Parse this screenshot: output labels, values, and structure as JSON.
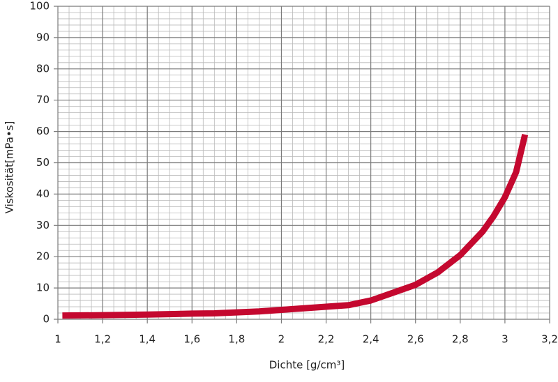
{
  "chart_data": {
    "type": "line",
    "xlabel": "Dichte [g/cm³]",
    "ylabel": "Viskosität[mPa•s]",
    "xlim": [
      1,
      3.2
    ],
    "ylim": [
      0,
      100
    ],
    "xticks": [
      1,
      {
        "value": 1.2,
        "label": "1,2"
      },
      {
        "value": 1.4,
        "label": "1,4"
      },
      {
        "value": 1.6,
        "label": "1,6"
      },
      {
        "value": 1.8,
        "label": "1,8"
      },
      2,
      {
        "value": 2.2,
        "label": "2,2"
      },
      {
        "value": 2.4,
        "label": "2,4"
      },
      {
        "value": 2.6,
        "label": "2,6"
      },
      {
        "value": 2.8,
        "label": "2,8"
      },
      3,
      {
        "value": 3.2,
        "label": "3,2"
      }
    ],
    "yticks": [
      0,
      10,
      20,
      30,
      40,
      50,
      60,
      70,
      80,
      90,
      100
    ],
    "grid": true,
    "x": [
      1.02,
      1.2,
      1.4,
      1.6,
      1.7,
      1.8,
      1.9,
      2.0,
      2.1,
      2.2,
      2.3,
      2.4,
      2.5,
      2.6,
      2.7,
      2.8,
      2.9,
      2.95,
      3.0,
      3.05,
      3.09
    ],
    "series": [
      {
        "color": "#c4082f",
        "values": [
          1.2,
          1.3,
          1.5,
          1.8,
          1.9,
          2.2,
          2.5,
          3,
          3.5,
          4,
          4.5,
          6,
          8.5,
          11,
          15,
          20.5,
          28,
          33,
          39,
          47,
          59
        ]
      }
    ]
  }
}
